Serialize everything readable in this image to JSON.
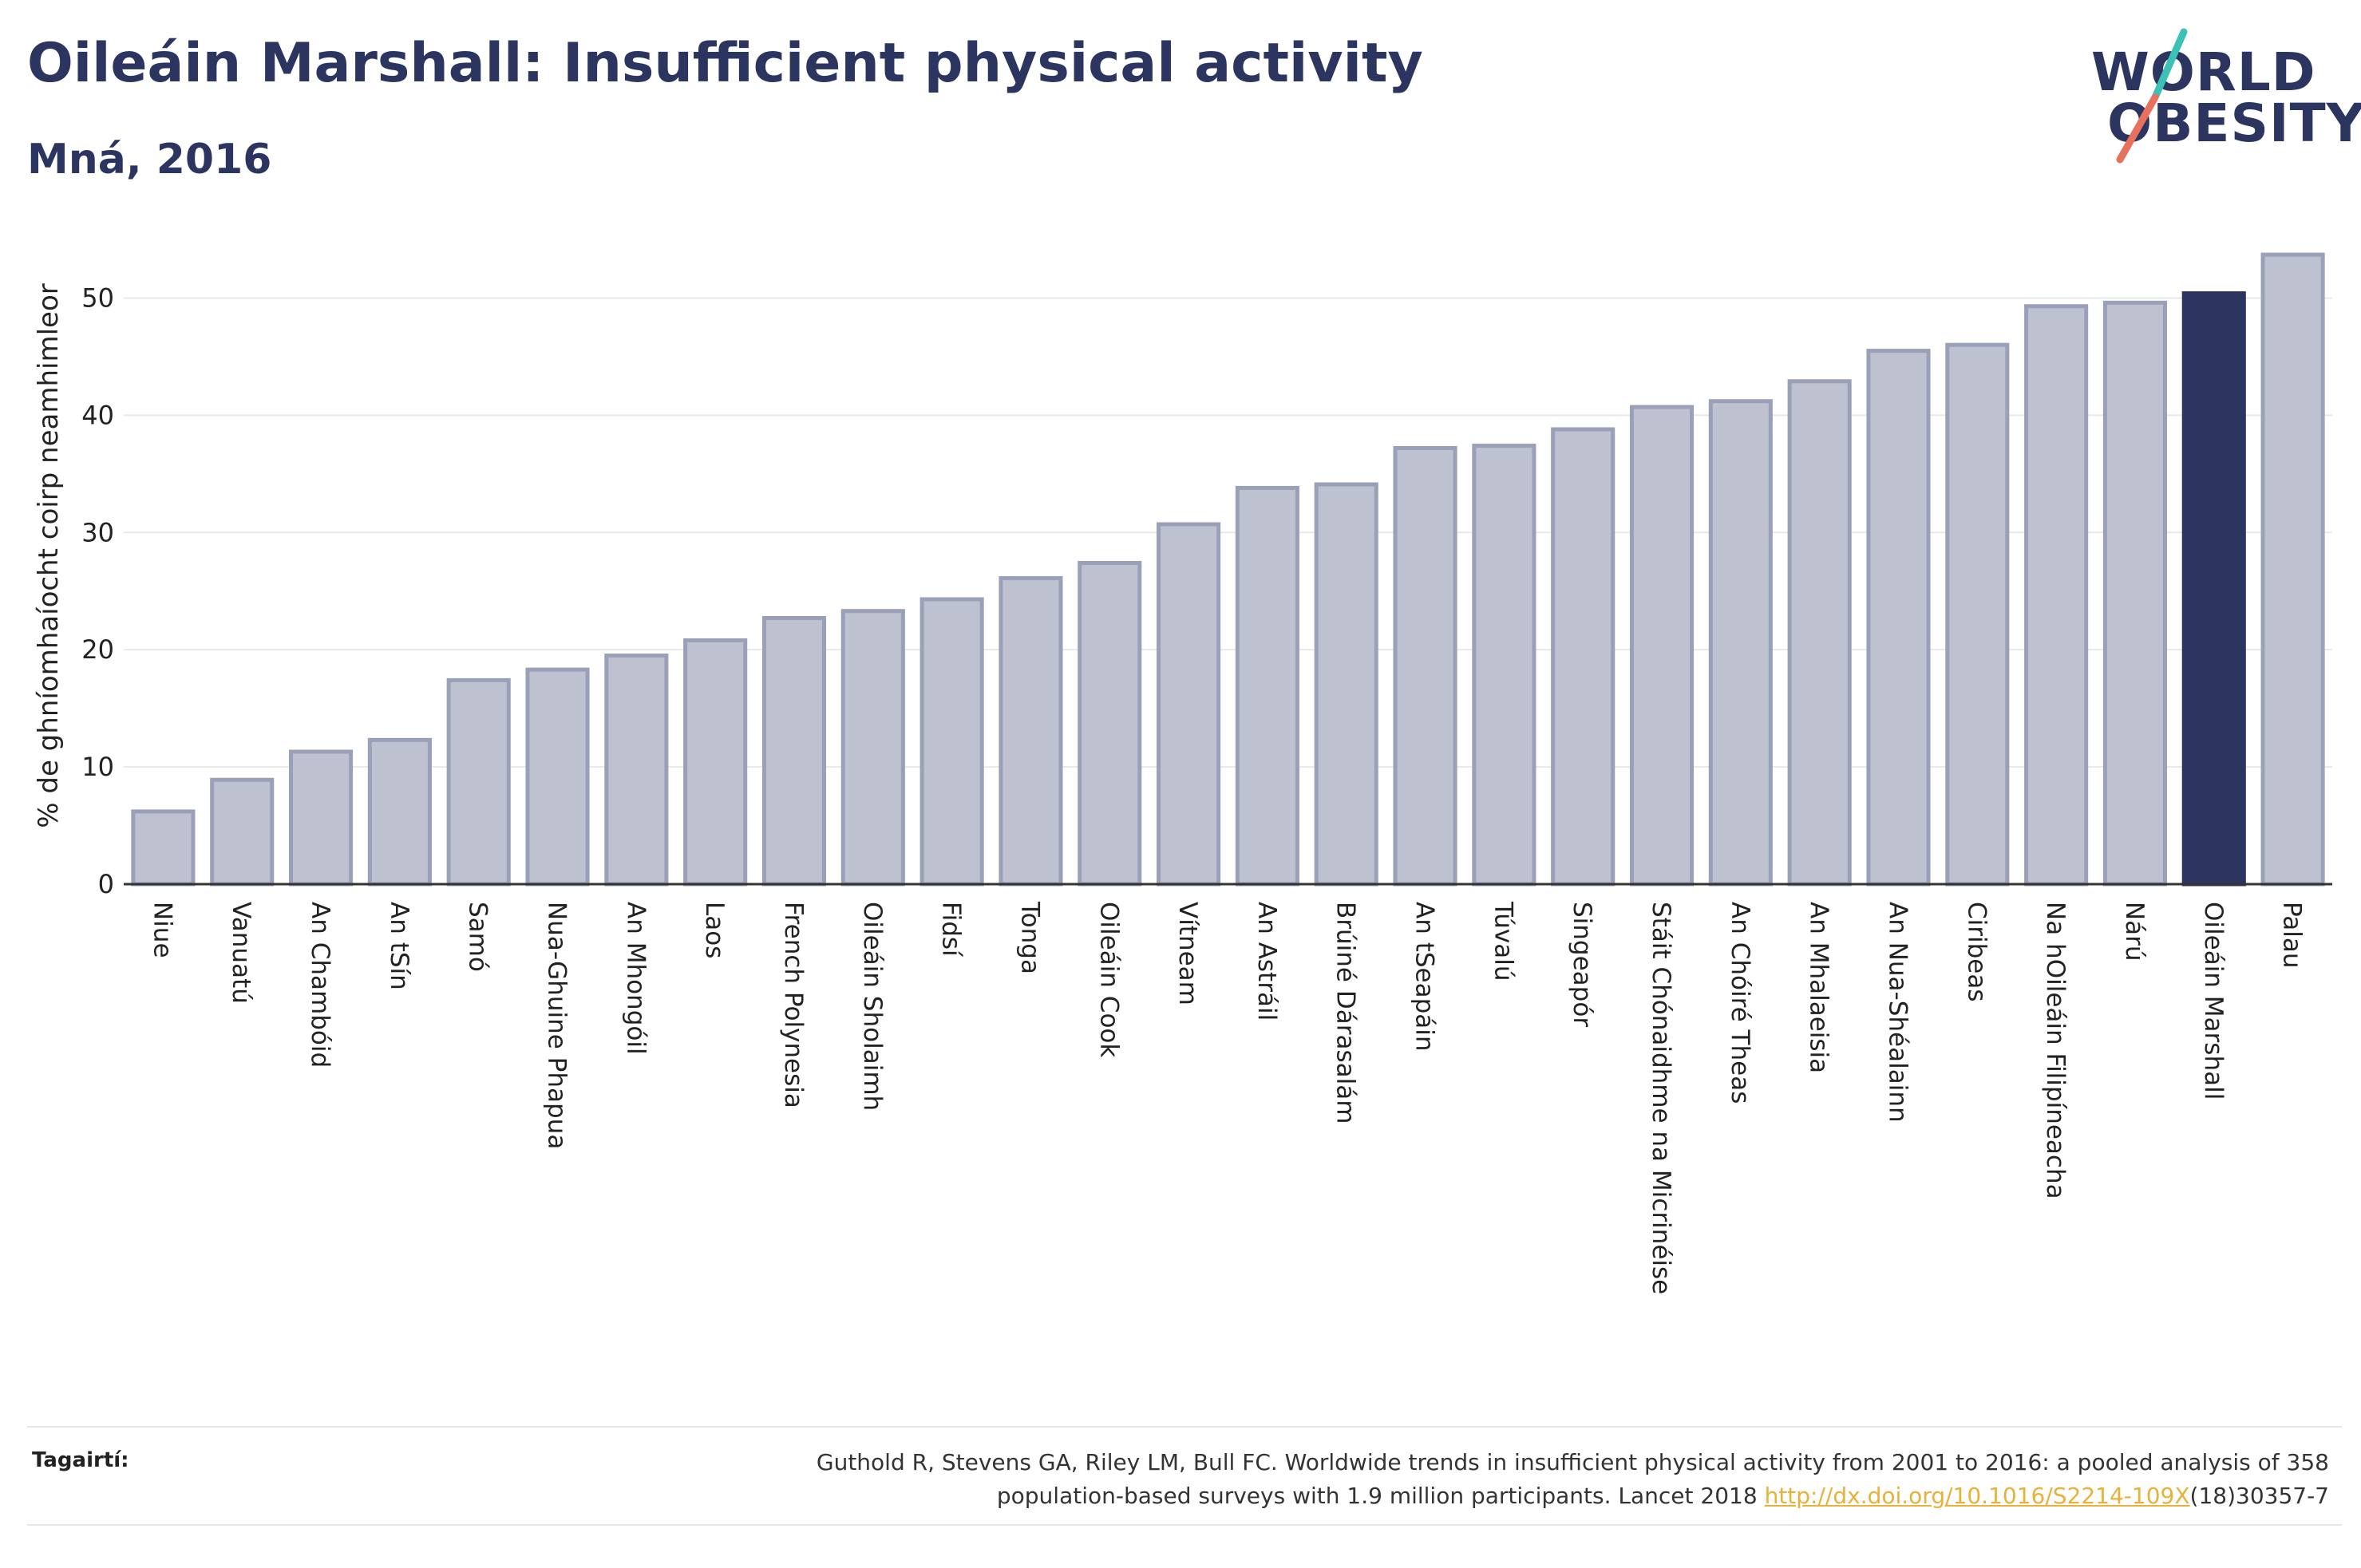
{
  "header": {
    "title": "Oileáin Marshall: Insufficient physical activity",
    "subtitle": "Mná, 2016"
  },
  "logo": {
    "line1": "WORLD",
    "line2": "OBESITY",
    "slash_colors": [
      "#3cc1b7",
      "#e8705f"
    ]
  },
  "colors": {
    "bar": "#bec1cf",
    "bar_border": "#9aa0b8",
    "highlight": "#2b3560",
    "grid": "#e8e8e8"
  },
  "chart_data": {
    "type": "bar",
    "ylabel": "% de ghníomhaíocht coirp neamhimleor",
    "ylim": [
      0,
      55
    ],
    "yticks": [
      0,
      10,
      20,
      30,
      40,
      50
    ],
    "grid": true,
    "highlight": "Oileáin Marshall",
    "categories": [
      "Niue",
      "Vanuatú",
      "An Chambóid",
      "An tSín",
      "Samó",
      "Nua-Ghuine Phapua",
      "An Mhongóil",
      "Laos",
      "French Polynesia",
      "Oileáin Sholaimh",
      "Fidsí",
      "Tonga",
      "Oileáin Cook",
      "Vítneam",
      "An Astráil",
      "Brúiné Dárasalám",
      "An tSeapáin",
      "Túvalú",
      "Singeapór",
      "Stáit Chónaidhme na Micrinéise",
      "An Chóiré Theas",
      "An Mhalaeisia",
      "An Nua-Shéalainn",
      "Ciribeas",
      "Na hOileáin Filipíneacha",
      "Nárú",
      "Oileáin Marshall",
      "Palau"
    ],
    "values": [
      6.2,
      8.9,
      11.3,
      12.3,
      17.4,
      18.3,
      19.5,
      20.8,
      22.7,
      23.3,
      24.3,
      26.1,
      27.4,
      30.7,
      33.8,
      34.1,
      37.2,
      37.4,
      38.8,
      40.7,
      41.2,
      42.9,
      45.5,
      46.0,
      49.3,
      49.6,
      50.4,
      53.7
    ]
  },
  "footer": {
    "label": "Tagairtí:",
    "ref_line1": "Guthold R, Stevens GA, Riley LM, Bull FC. Worldwide trends in insufficient physical activity from 2001 to 2016: a pooled analysis of 358",
    "ref_line2_before": "population-based surveys with 1.9 million participants. Lancet 2018 ",
    "ref_link": "http://dx.doi.org/10.1016/S2214-109X",
    "ref_line2_after": "(18)30357-7"
  }
}
